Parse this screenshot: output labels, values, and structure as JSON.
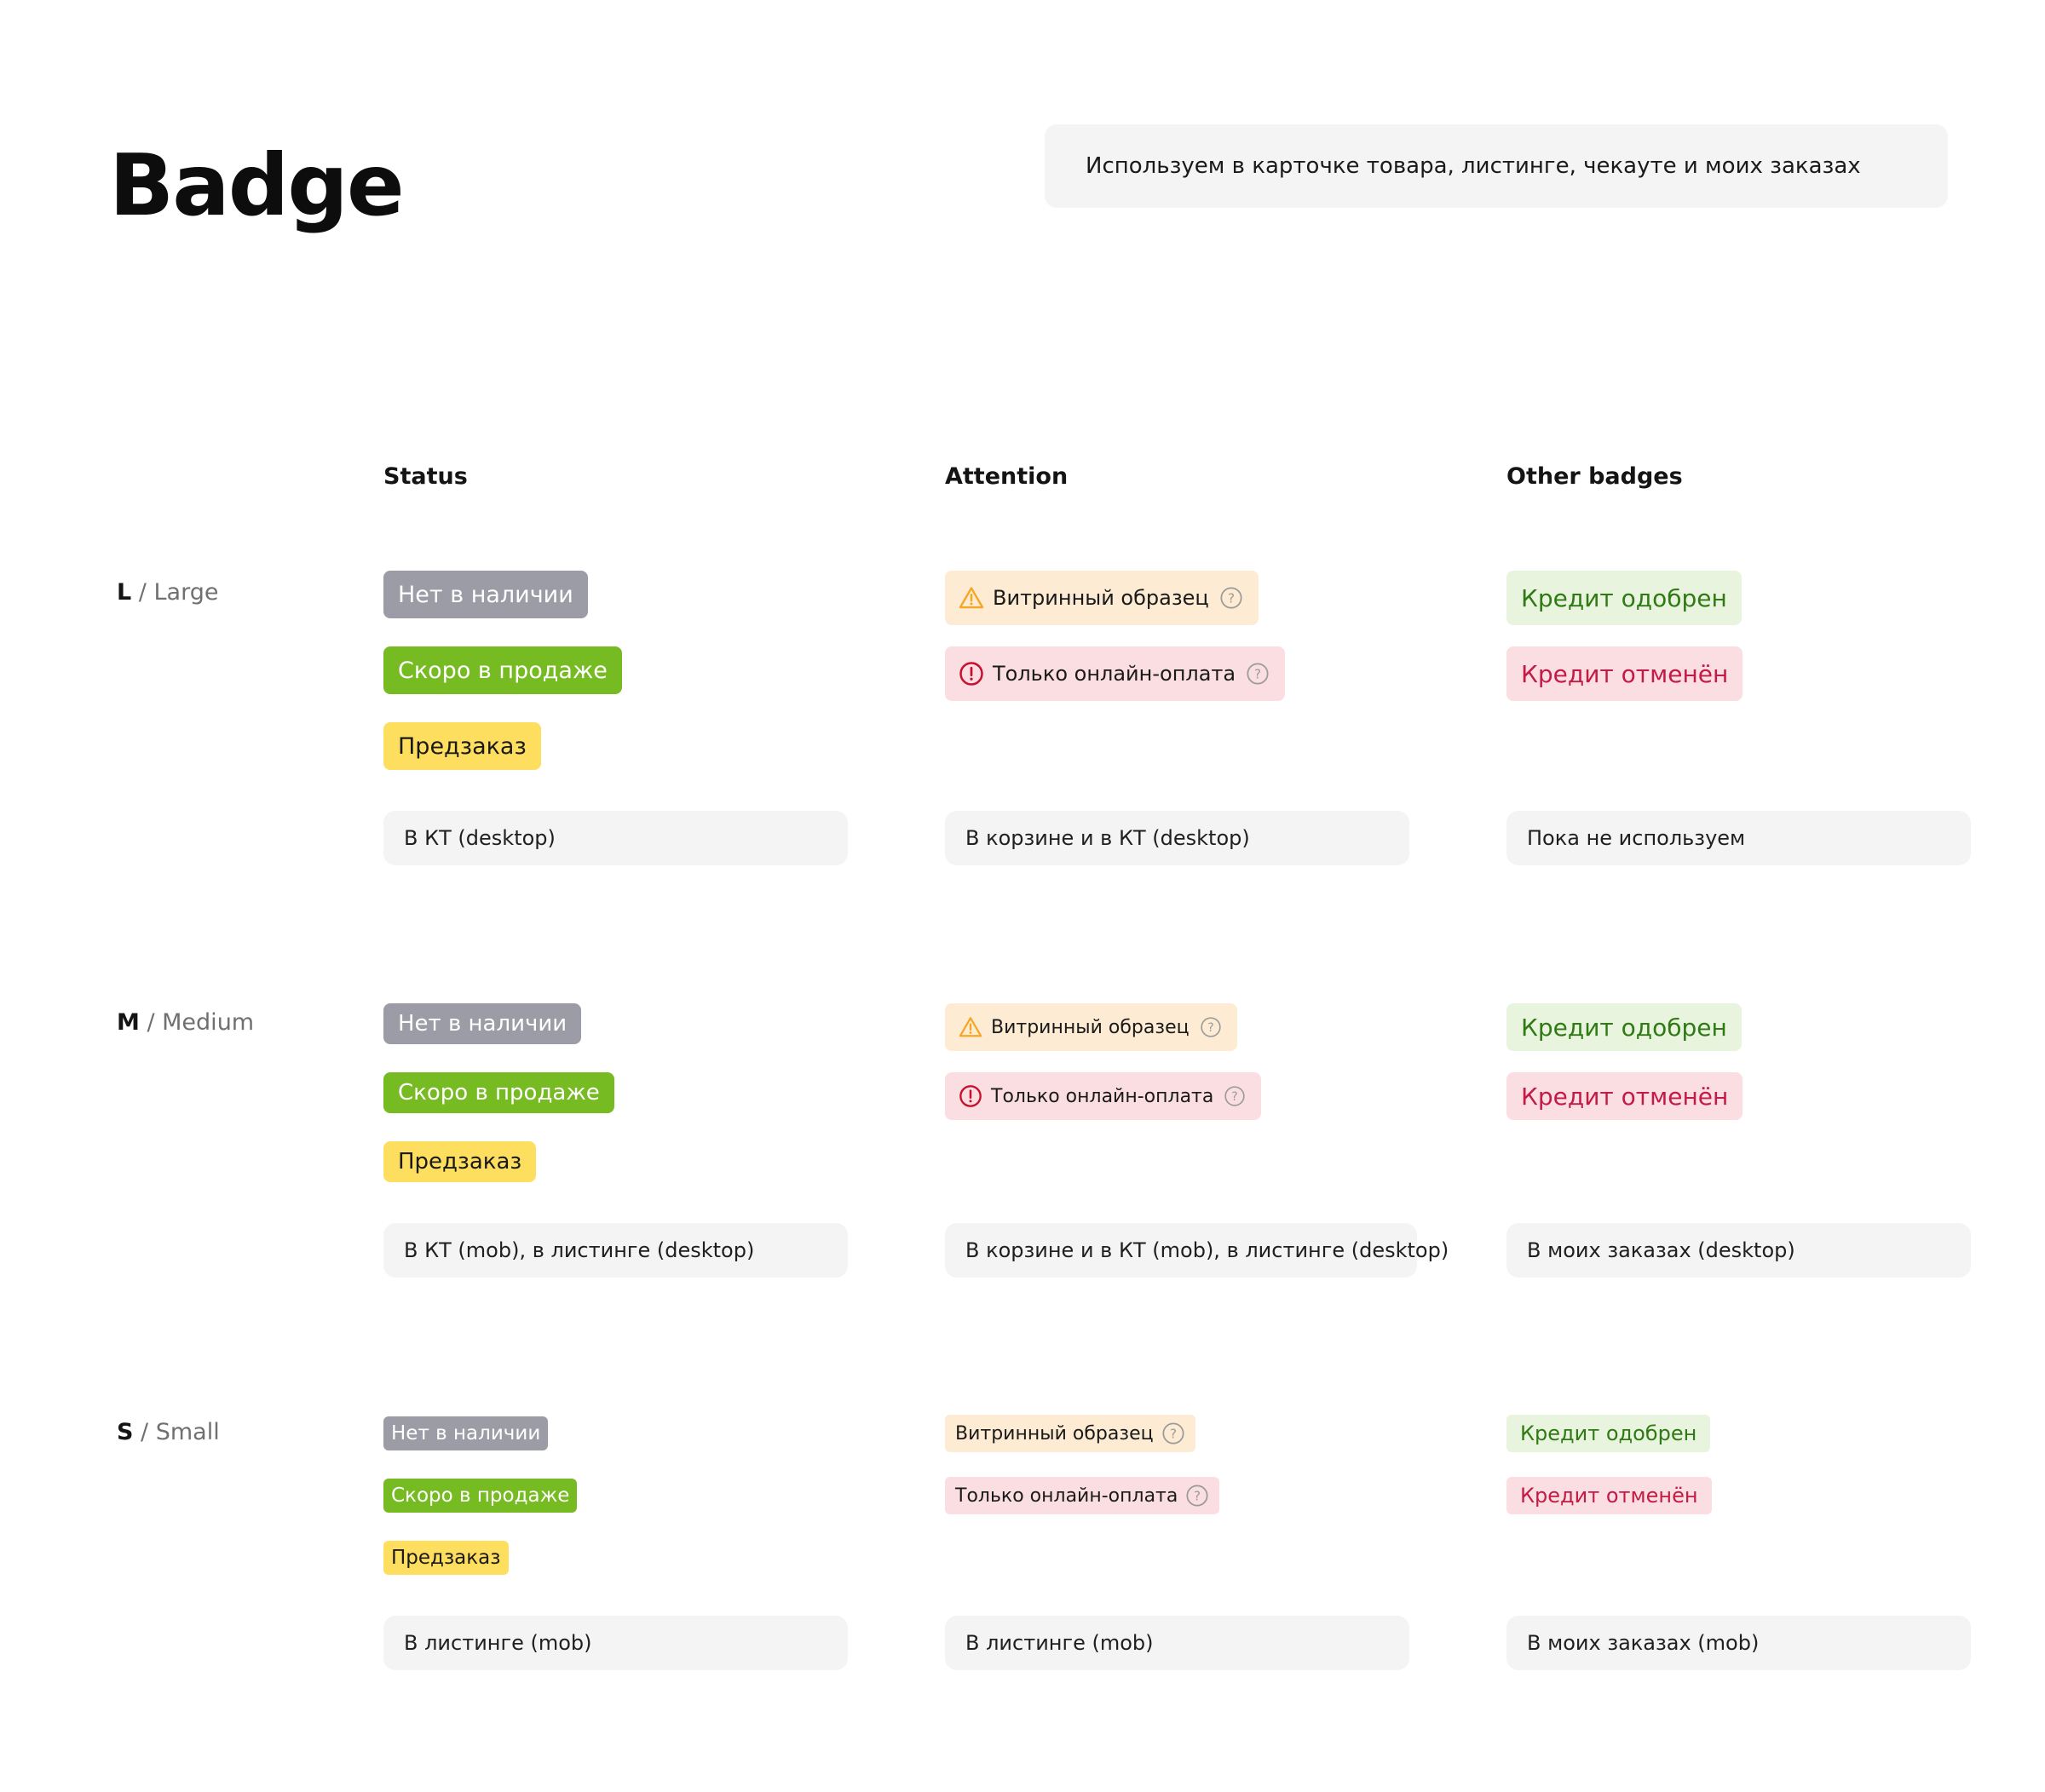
{
  "page": {
    "title": "Badge",
    "note": "Используем в карточке товара, листинге, чекауте и моих заказах"
  },
  "columns": {
    "status": "Status",
    "attention": "Attention",
    "other": "Other badges"
  },
  "colors": {
    "status_grey": "#9b9ca5",
    "status_green": "#76bb22",
    "status_yellow": "#fdde5f",
    "attention_warning_bg": "#fdecd3",
    "attention_danger_bg": "#fbdee1",
    "warning_icon": "#f5a623",
    "danger_icon": "#c8102e",
    "credit_approved_bg": "#e9f4de",
    "credit_approved_text": "#2f7a14",
    "credit_cancelled_bg": "#fbdee1",
    "credit_cancelled_text": "#c31b46"
  },
  "icons": {
    "warning": "warning-triangle-icon",
    "danger": "exclamation-circle-icon",
    "help": "question-circle-icon"
  },
  "sizes": {
    "L": {
      "code": "L",
      "name": "Large",
      "status": [
        "Нет в наличии",
        "Скоро в продаже",
        "Предзаказ"
      ],
      "attention": [
        "Витринный образец",
        "Только онлайн-оплата"
      ],
      "other": [
        "Кредит одобрен",
        "Кредит отменён"
      ],
      "usage": {
        "status": "В КТ (desktop)",
        "attention": "В корзине и в КТ (desktop)",
        "other": "Пока не используем"
      }
    },
    "M": {
      "code": "M",
      "name": "Medium",
      "status": [
        "Нет в наличии",
        "Скоро в продаже",
        "Предзаказ"
      ],
      "attention": [
        "Витринный образец",
        "Только онлайн-оплата"
      ],
      "other": [
        "Кредит одобрен",
        "Кредит отменён"
      ],
      "usage": {
        "status": "В КТ (mob), в листинге (desktop)",
        "attention": "В корзине и в КТ (mob), в листинге (desktop)",
        "other": "В моих заказах (desktop)"
      }
    },
    "S": {
      "code": "S",
      "name": "Small",
      "status": [
        "Нет в наличии",
        "Скоро в продаже",
        "Предзаказ"
      ],
      "attention": [
        "Витринный образец",
        "Только онлайн-оплата"
      ],
      "other": [
        "Кредит одобрен",
        "Кредит отменён"
      ],
      "usage": {
        "status": "В листинге (mob)",
        "attention": "В листинге (mob)",
        "other": "В моих заказах (mob)"
      }
    }
  }
}
